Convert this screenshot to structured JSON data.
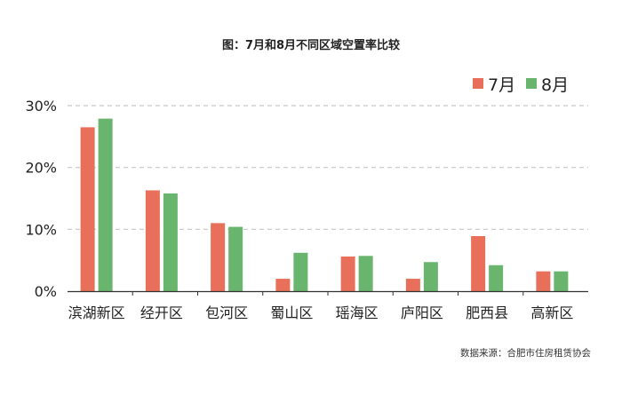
{
  "chart_data": {
    "type": "bar",
    "title": "图：7月和8月不同区域空置率比较",
    "categories": [
      "滨湖新区",
      "经开区",
      "包河区",
      "蜀山区",
      "瑶海区",
      "庐阳区",
      "肥西县",
      "高新区"
    ],
    "series": [
      {
        "name": "7月",
        "color": "#e8705a",
        "values": [
          26.5,
          16.3,
          11.0,
          2.0,
          5.6,
          2.0,
          8.9,
          3.2
        ]
      },
      {
        "name": "8月",
        "color": "#6ab56e",
        "values": [
          27.9,
          15.8,
          10.4,
          6.2,
          5.7,
          4.7,
          4.2,
          3.2
        ]
      }
    ],
    "ylim": [
      0,
      30
    ],
    "yticks": [
      0,
      10,
      20,
      30
    ],
    "ytick_labels": [
      "0%",
      "10%",
      "20%",
      "30%"
    ],
    "xlabel": "",
    "ylabel": "",
    "grid": true,
    "legend": "top-right",
    "source": "数据来源：合肥市住房租赁协会"
  }
}
